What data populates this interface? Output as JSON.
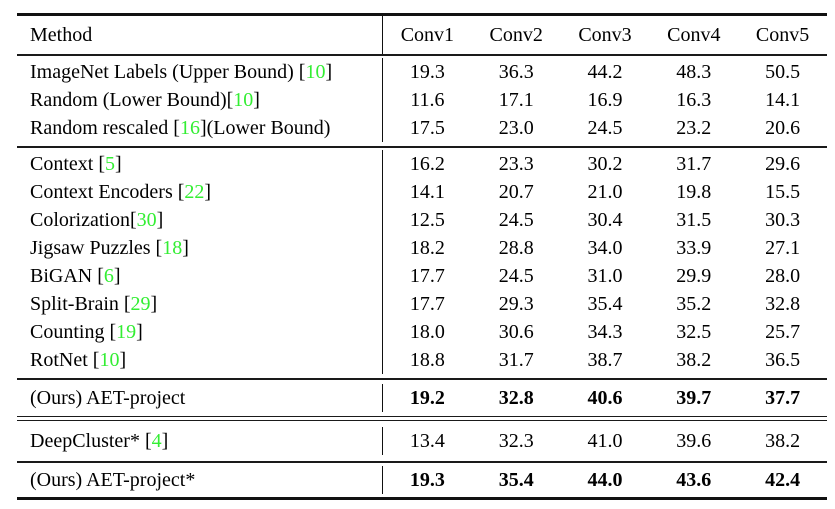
{
  "table": {
    "citation_color": "#33ee33",
    "header": {
      "method": "Method",
      "columns": [
        "Conv1",
        "Conv2",
        "Conv3",
        "Conv4",
        "Conv5"
      ]
    },
    "sections": [
      {
        "rows": [
          {
            "pre": "ImageNet Labels (Upper Bound) [",
            "cite": "10",
            "post": "]",
            "bold": false,
            "values": [
              "19.3",
              "36.3",
              "44.2",
              "48.3",
              "50.5"
            ]
          },
          {
            "pre": "Random (Lower Bound)[",
            "cite": "10",
            "post": "]",
            "bold": false,
            "values": [
              "11.6",
              "17.1",
              "16.9",
              "16.3",
              "14.1"
            ]
          },
          {
            "pre": "Random rescaled [",
            "cite": "16",
            "post": "](Lower Bound)",
            "bold": false,
            "values": [
              "17.5",
              "23.0",
              "24.5",
              "23.2",
              "20.6"
            ]
          }
        ]
      },
      {
        "rows": [
          {
            "pre": "Context [",
            "cite": "5",
            "post": "]",
            "bold": false,
            "values": [
              "16.2",
              "23.3",
              "30.2",
              "31.7",
              "29.6"
            ]
          },
          {
            "pre": "Context Encoders [",
            "cite": "22",
            "post": "]",
            "bold": false,
            "values": [
              "14.1",
              "20.7",
              "21.0",
              "19.8",
              "15.5"
            ]
          },
          {
            "pre": "Colorization[",
            "cite": "30",
            "post": "]",
            "bold": false,
            "values": [
              "12.5",
              "24.5",
              "30.4",
              "31.5",
              "30.3"
            ]
          },
          {
            "pre": "Jigsaw Puzzles [",
            "cite": "18",
            "post": "]",
            "bold": false,
            "values": [
              "18.2",
              "28.8",
              "34.0",
              "33.9",
              "27.1"
            ]
          },
          {
            "pre": "BiGAN [",
            "cite": "6",
            "post": "]",
            "bold": false,
            "values": [
              "17.7",
              "24.5",
              "31.0",
              "29.9",
              "28.0"
            ]
          },
          {
            "pre": "Split-Brain [",
            "cite": "29",
            "post": "]",
            "bold": false,
            "values": [
              "17.7",
              "29.3",
              "35.4",
              "35.2",
              "32.8"
            ]
          },
          {
            "pre": "Counting [",
            "cite": "19",
            "post": "]",
            "bold": false,
            "values": [
              "18.0",
              "30.6",
              "34.3",
              "32.5",
              "25.7"
            ]
          },
          {
            "pre": "RotNet [",
            "cite": "10",
            "post": "]",
            "bold": false,
            "values": [
              "18.8",
              "31.7",
              "38.7",
              "38.2",
              "36.5"
            ]
          }
        ]
      },
      {
        "rows": [
          {
            "pre": "(Ours) AET-project",
            "cite": "",
            "post": "",
            "bold": true,
            "values": [
              "19.2",
              "32.8",
              "40.6",
              "39.7",
              "37.7"
            ]
          }
        ]
      },
      {
        "rows": [
          {
            "pre": "DeepCluster* [",
            "cite": "4",
            "post": "]",
            "bold": false,
            "values": [
              "13.4",
              "32.3",
              "41.0",
              "39.6",
              "38.2"
            ]
          }
        ]
      },
      {
        "rows": [
          {
            "pre": "(Ours) AET-project*",
            "cite": "",
            "post": "",
            "bold": true,
            "values": [
              "19.3",
              "35.4",
              "44.0",
              "43.6",
              "42.4"
            ]
          }
        ]
      }
    ]
  }
}
